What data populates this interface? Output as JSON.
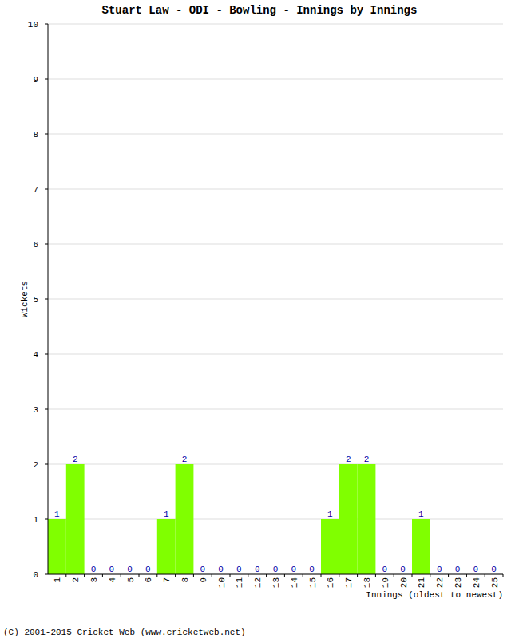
{
  "chart_data": {
    "type": "bar",
    "title": "Stuart Law - ODI - Bowling - Innings by Innings",
    "x_label": "Innings (oldest to newest)",
    "y_label": "Wickets",
    "categories": [
      "1",
      "2",
      "3",
      "4",
      "5",
      "6",
      "7",
      "8",
      "9",
      "10",
      "11",
      "12",
      "13",
      "14",
      "15",
      "16",
      "17",
      "18",
      "19",
      "20",
      "21",
      "22",
      "23",
      "24",
      "25"
    ],
    "values": [
      1,
      2,
      0,
      0,
      0,
      0,
      1,
      2,
      0,
      0,
      0,
      0,
      0,
      0,
      0,
      1,
      2,
      2,
      0,
      0,
      1,
      0,
      0,
      0,
      0
    ],
    "color": "#80ff00",
    "ylim": [
      0,
      10
    ],
    "yticks": [
      0,
      1,
      2,
      3,
      4,
      5,
      6,
      7,
      8,
      9,
      10
    ],
    "grid": true,
    "data_labels": true,
    "annotations": [
      "(C) 2001-2015 Cricket Web (www.cricketweb.net)"
    ]
  }
}
